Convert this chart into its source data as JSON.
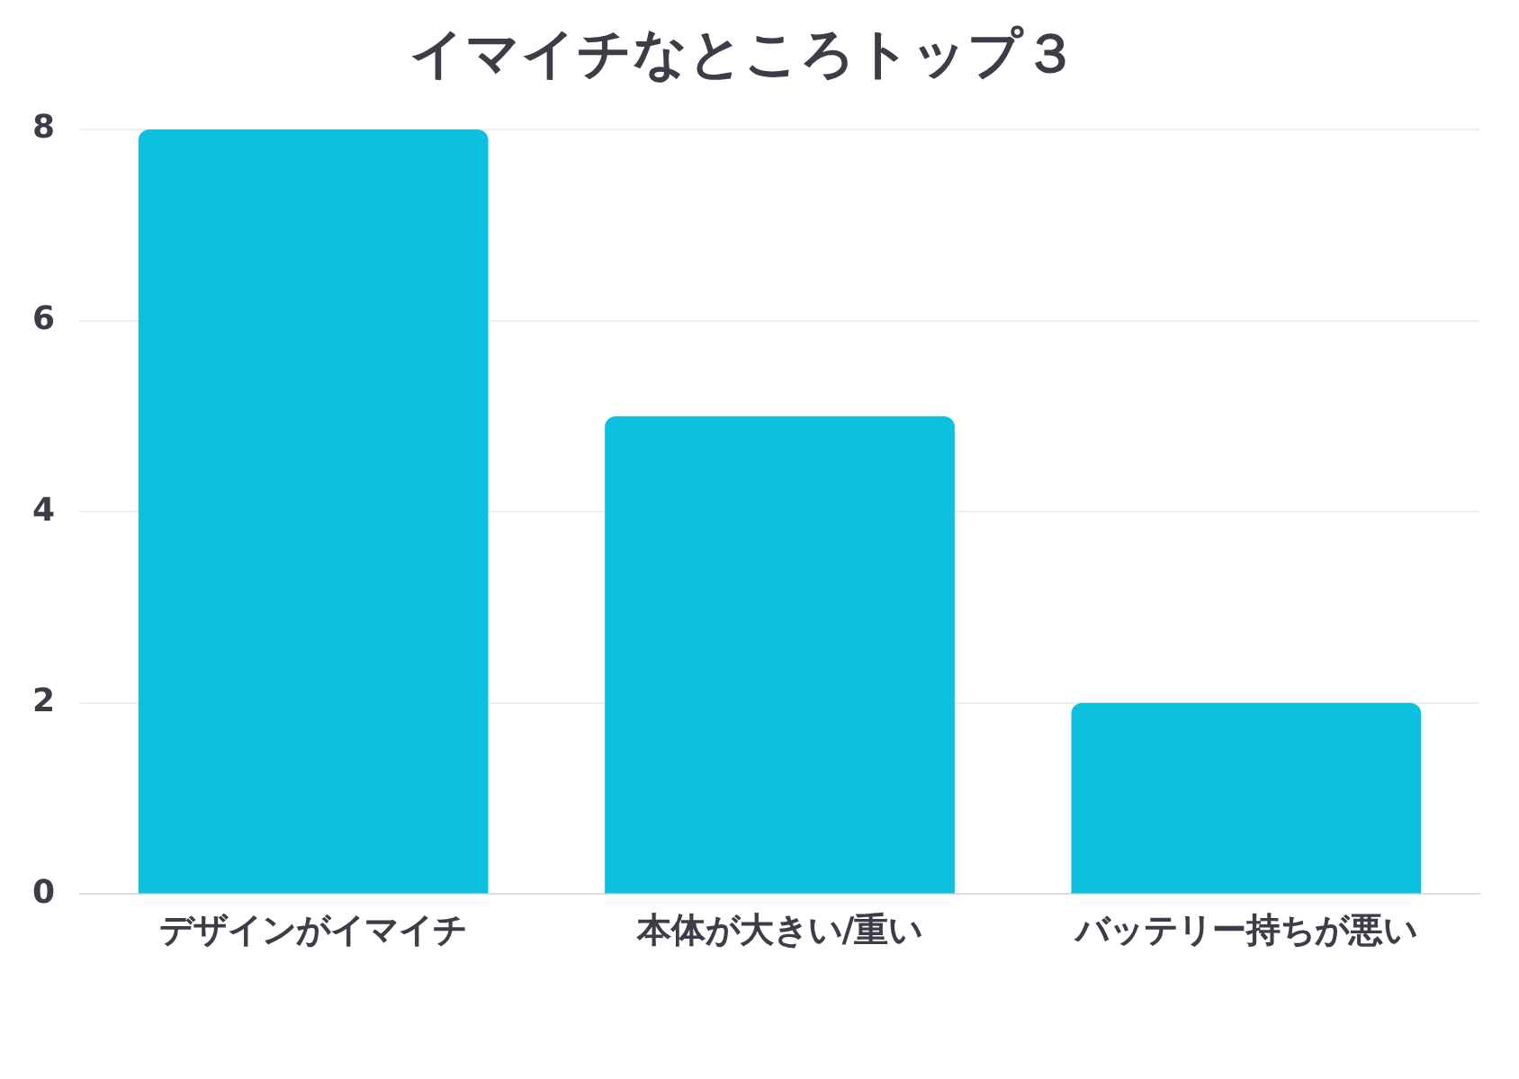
{
  "chart_data": {
    "type": "bar",
    "title": "イマイチなところトップ３",
    "categories": [
      "デザインがイマイチ",
      "本体が大きい/重い",
      "バッテリー持ちが悪い"
    ],
    "values": [
      8,
      5,
      2
    ],
    "color": "#0cc0df",
    "ylim": [
      0,
      8
    ],
    "yticks": [
      0,
      2,
      4,
      6,
      8
    ],
    "grid": "y",
    "legend": false
  }
}
